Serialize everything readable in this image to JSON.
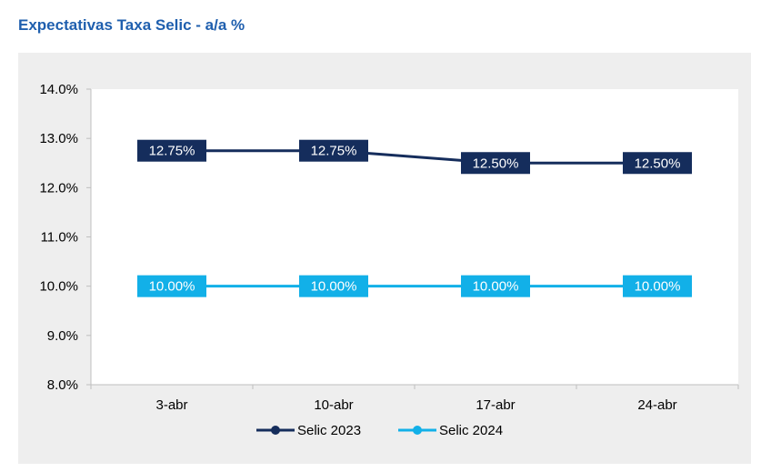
{
  "chart_data": {
    "type": "line",
    "title": "Expectativas Taxa Selic - a/a %",
    "xlabel": "",
    "ylabel": "",
    "categories": [
      "3-abr",
      "10-abr",
      "17-abr",
      "24-abr"
    ],
    "ylim": [
      8.0,
      14.0
    ],
    "yticks": [
      8.0,
      9.0,
      10.0,
      11.0,
      12.0,
      13.0,
      14.0
    ],
    "ytick_labels": [
      "8.0%",
      "9.0%",
      "10.0%",
      "11.0%",
      "12.0%",
      "13.0%",
      "14.0%"
    ],
    "grid": false,
    "legend_position": "bottom",
    "series": [
      {
        "name": "Selic 2023",
        "color": "#152d5c",
        "values": [
          12.75,
          12.75,
          12.5,
          12.5
        ],
        "labels": [
          "12.75%",
          "12.75%",
          "12.50%",
          "12.50%"
        ]
      },
      {
        "name": "Selic 2024",
        "color": "#12b0e8",
        "values": [
          10.0,
          10.0,
          10.0,
          10.0
        ],
        "labels": [
          "10.00%",
          "10.00%",
          "10.00%",
          "10.00%"
        ]
      }
    ]
  }
}
